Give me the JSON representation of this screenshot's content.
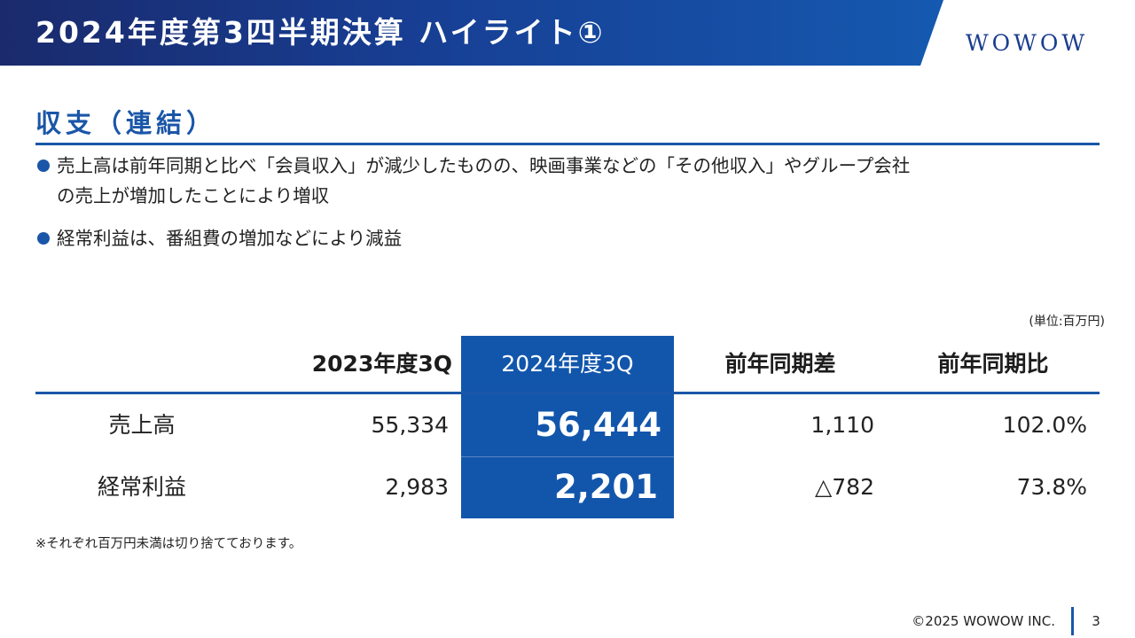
{
  "header": {
    "title": "2024年度第3四半期決算 ハイライト①",
    "logo": "WOWOW"
  },
  "section": {
    "title": "収支（連結）"
  },
  "bullets": [
    {
      "line1": "売上高は前年同期と比べ「会員収入」が減少したものの、映画事業などの「その他収入」やグループ会社",
      "line2": "の売上が増加したことにより増収"
    },
    {
      "line1": "経常利益は、番組費の増加などにより減益"
    }
  ],
  "table": {
    "unit": "(単位:百万円)",
    "headers": [
      "2023年度3Q",
      "2024年度3Q",
      "前年同期差",
      "前年同期比"
    ],
    "rows": [
      {
        "label": "売上高",
        "values": [
          "55,334",
          "56,444",
          "1,110",
          "102.0%"
        ]
      },
      {
        "label": "経常利益",
        "values": [
          "2,983",
          "2,201",
          "△782",
          "73.8%"
        ]
      }
    ],
    "note": "※それぞれ百万円未満は切り捨てております。"
  },
  "footer": {
    "copyright": "©2025 WOWOW INC.",
    "page_number": "3"
  },
  "colors": {
    "brand_blue": "#1a56a8",
    "highlight_column": "#1256ac",
    "banner_dark": "#1a2a6c"
  }
}
